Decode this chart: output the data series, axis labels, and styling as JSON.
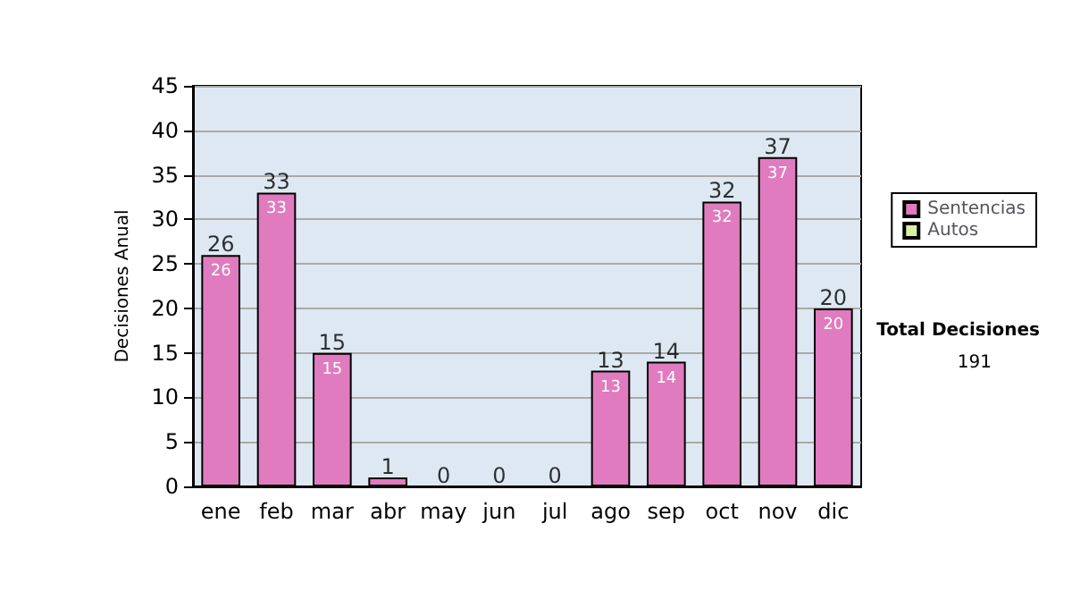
{
  "chart_data": {
    "type": "bar",
    "ylabel": "Decisiones Anual",
    "categories": [
      "ene",
      "feb",
      "mar",
      "abr",
      "may",
      "jun",
      "jul",
      "ago",
      "sep",
      "oct",
      "nov",
      "dic"
    ],
    "series": [
      {
        "name": "Sentencias",
        "color": "#e07bbf",
        "values": [
          26,
          33,
          15,
          1,
          0,
          0,
          0,
          13,
          14,
          32,
          37,
          20
        ],
        "value_labels": [
          "26",
          "33",
          "15",
          null,
          null,
          null,
          null,
          "13",
          "14",
          "32",
          "37",
          "20"
        ]
      },
      {
        "name": "Autos",
        "color": "#d9f0a3",
        "values": [
          0,
          0,
          0,
          0,
          0,
          0,
          0,
          0,
          0,
          0,
          0,
          0
        ]
      }
    ],
    "stacked": true,
    "totals": [
      "26",
      "33",
      "15",
      "1",
      "0",
      "0",
      "0",
      "13",
      "14",
      "32",
      "37",
      "20"
    ],
    "ylim": [
      0,
      45
    ],
    "yticks": [
      0,
      5,
      10,
      15,
      20,
      25,
      30,
      35,
      40,
      45
    ],
    "grid": "y",
    "legend": "right",
    "annotations": [
      "Total Decisiones",
      "191"
    ]
  }
}
